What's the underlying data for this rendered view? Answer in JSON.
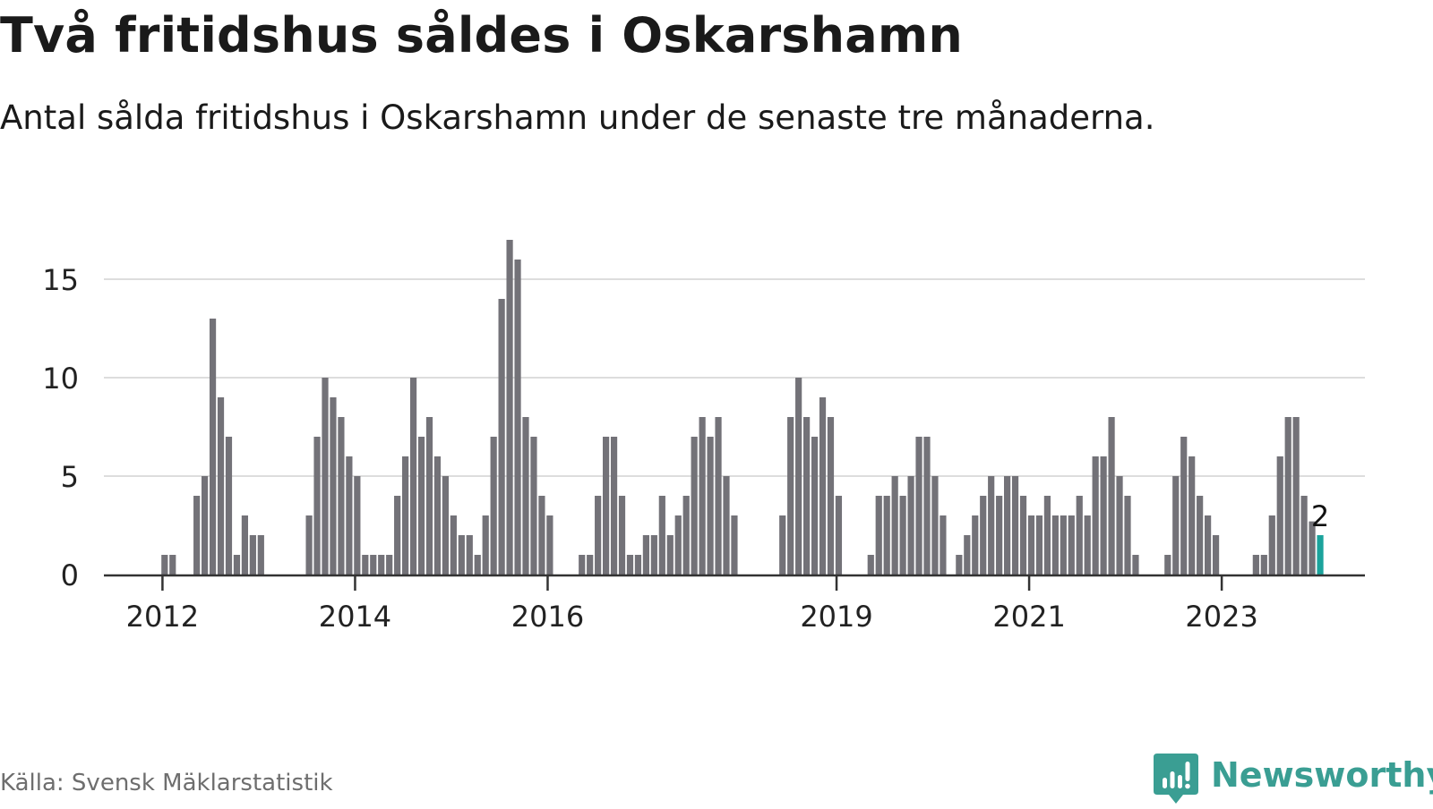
{
  "header": {
    "title": "Två fritidshus såldes i Oskarshamn",
    "subtitle": "Antal sålda fritidshus i Oskarshamn under de senaste tre månaderna."
  },
  "footer": {
    "source": "Källa: Svensk Mäklarstatistik",
    "brand": "Newsworthy"
  },
  "colors": {
    "bar": "#737278",
    "highlight": "#1ba39c",
    "grid": "#dddddd",
    "axis": "#333333",
    "brand": "#3a9e93"
  },
  "chart_data": {
    "type": "bar",
    "title": "Två fritidshus såldes i Oskarshamn",
    "xlabel": "",
    "ylabel": "",
    "ylim": [
      0,
      18
    ],
    "yticks": [
      0,
      5,
      10,
      15
    ],
    "grid": true,
    "start_period": "2011-07",
    "frequency": "monthly",
    "x_tick_labels": [
      {
        "label": "2012",
        "index": 7
      },
      {
        "label": "2014",
        "index": 31
      },
      {
        "label": "2016",
        "index": 55
      },
      {
        "label": "2019",
        "index": 91
      },
      {
        "label": "2021",
        "index": 115
      },
      {
        "label": "2023",
        "index": 139
      }
    ],
    "values": [
      0,
      0,
      0,
      0,
      0,
      0,
      0,
      1,
      1,
      0,
      0,
      4,
      5,
      13,
      9,
      7,
      1,
      3,
      2,
      2,
      0,
      0,
      0,
      0,
      0,
      3,
      7,
      10,
      9,
      8,
      6,
      5,
      1,
      1,
      1,
      1,
      4,
      6,
      10,
      7,
      8,
      6,
      5,
      3,
      2,
      2,
      1,
      3,
      7,
      14,
      17,
      16,
      8,
      7,
      4,
      3,
      0,
      0,
      0,
      1,
      1,
      4,
      7,
      7,
      4,
      1,
      1,
      2,
      2,
      4,
      2,
      3,
      4,
      7,
      8,
      7,
      8,
      5,
      3,
      0,
      0,
      0,
      0,
      0,
      3,
      8,
      10,
      8,
      7,
      9,
      8,
      4,
      0,
      0,
      0,
      1,
      4,
      4,
      5,
      4,
      5,
      7,
      7,
      5,
      3,
      0,
      1,
      2,
      3,
      4,
      5,
      4,
      5,
      5,
      4,
      3,
      3,
      4,
      3,
      3,
      3,
      4,
      3,
      6,
      6,
      8,
      5,
      4,
      1,
      0,
      0,
      0,
      1,
      5,
      7,
      6,
      4,
      3,
      2,
      0,
      0,
      0,
      0,
      1,
      1,
      3,
      6,
      8,
      8,
      4,
      2.7,
      2
    ],
    "highlight": {
      "index": 151,
      "value": 2,
      "label": "2"
    }
  }
}
